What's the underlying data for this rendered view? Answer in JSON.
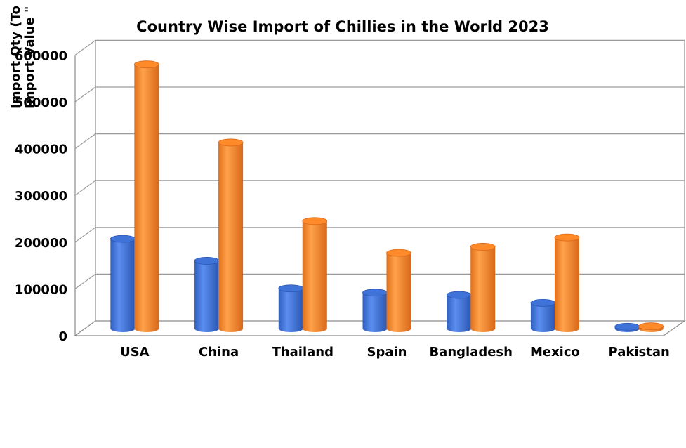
{
  "chart_data": {
    "type": "bar",
    "title": "Country Wise Import of Chillies in the World 2023",
    "ylabel_primary": "Import Qty (To",
    "ylabel_secondary": "Import Value \"",
    "categories": [
      "USA",
      "China",
      "Thailand",
      "Spain",
      "Bangladesh",
      "Mexico",
      "Pakistan"
    ],
    "series": [
      {
        "color": "#3f73d8",
        "values": [
          192000,
          145000,
          86000,
          77000,
          72000,
          55000,
          4000
        ]
      },
      {
        "color": "#ff8a2a",
        "values": [
          565000,
          398000,
          230000,
          162000,
          175000,
          195000,
          5000
        ]
      }
    ],
    "yticks": [
      "0",
      "100000",
      "200000",
      "300000",
      "400000",
      "500000",
      "600000"
    ],
    "ylim": [
      0,
      600000
    ],
    "grid": true,
    "style": "3d-cylinder",
    "legend": "none"
  }
}
